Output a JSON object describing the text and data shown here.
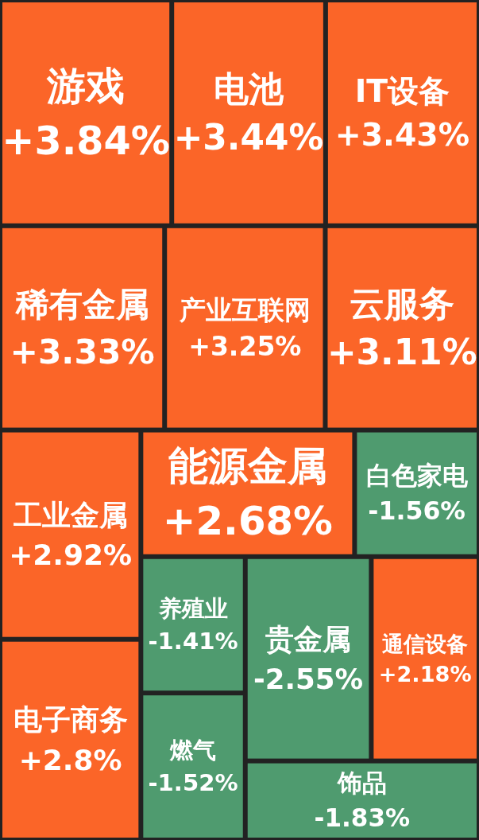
{
  "chart_data": {
    "type": "other",
    "categories": [
      "游戏",
      "电池",
      "IT设备",
      "稀有金属",
      "产业互联网",
      "云服务",
      "工业金属",
      "电子商务",
      "能源金属",
      "白色家电",
      "养殖业",
      "燃气",
      "贵金属",
      "通信设备",
      "饰品"
    ],
    "values": [
      3.84,
      3.44,
      3.43,
      3.33,
      3.25,
      3.11,
      2.92,
      2.8,
      2.68,
      -1.56,
      -1.41,
      -1.52,
      -2.55,
      2.18,
      -1.83
    ],
    "value_labels": [
      "+3.84%",
      "+3.44%",
      "+3.43%",
      "+3.33%",
      "+3.25%",
      "+3.11%",
      "+2.92%",
      "+2.8%",
      "+2.68%",
      "-1.56%",
      "-1.41%",
      "-1.52%",
      "-2.55%",
      "+2.18%",
      "-1.83%"
    ],
    "colors": [
      "#fb6528",
      "#fb6528",
      "#fb6528",
      "#fb6528",
      "#fb6528",
      "#fb6528",
      "#fb6528",
      "#fb6528",
      "#fb6528",
      "#4f9b6f",
      "#4f9b6f",
      "#4f9b6f",
      "#4f9b6f",
      "#fb6528",
      "#4f9b6f"
    ]
  }
}
